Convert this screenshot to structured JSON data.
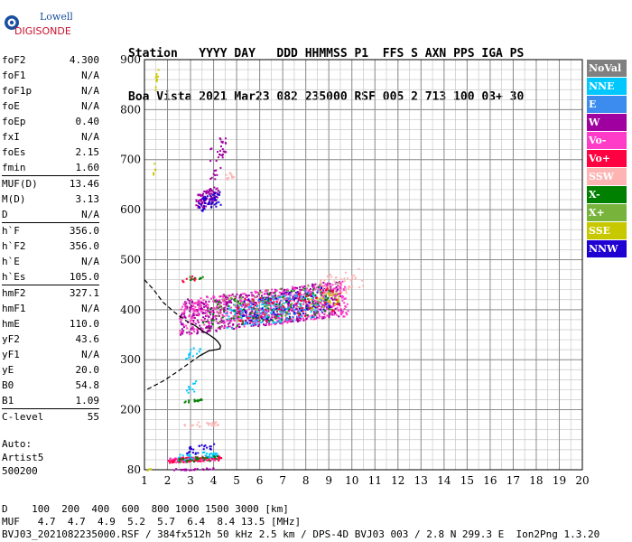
{
  "logo": {
    "line1": "Lowell",
    "line2": "DIGISONDE"
  },
  "header": {
    "labels": [
      "Station",
      "YYYY DAY",
      "DDD HHMMSS P1",
      "FFS S AXN PPS IGA PS"
    ],
    "values": [
      "Boa Vista",
      "2021 Mar23",
      "082 235000 RSF",
      "005 2 713 100 03+ 30"
    ]
  },
  "params": [
    [
      {
        "name": "foF2",
        "value": "4.300"
      },
      {
        "name": "foF1",
        "value": "N/A"
      },
      {
        "name": "foF1p",
        "value": "N/A"
      },
      {
        "name": "foE",
        "value": "N/A"
      },
      {
        "name": "foEp",
        "value": "0.40"
      },
      {
        "name": "fxI",
        "value": "N/A"
      },
      {
        "name": "foEs",
        "value": "2.15"
      },
      {
        "name": "fmin",
        "value": "1.60"
      }
    ],
    [
      {
        "name": "MUF(D)",
        "value": "13.46"
      },
      {
        "name": "M(D)",
        "value": "3.13"
      },
      {
        "name": "D",
        "value": "N/A"
      }
    ],
    [
      {
        "name": "h`F",
        "value": "356.0"
      },
      {
        "name": "h`F2",
        "value": "356.0"
      },
      {
        "name": "h`E",
        "value": "N/A"
      },
      {
        "name": "h`Es",
        "value": "105.0"
      }
    ],
    [
      {
        "name": "hmF2",
        "value": "327.1"
      },
      {
        "name": "hmF1",
        "value": "N/A"
      },
      {
        "name": "hmE",
        "value": "110.0"
      },
      {
        "name": "yF2",
        "value": "43.6"
      },
      {
        "name": "yF1",
        "value": "N/A"
      },
      {
        "name": "yE",
        "value": "20.0"
      },
      {
        "name": "B0",
        "value": "54.8"
      },
      {
        "name": "B1",
        "value": "1.09"
      }
    ],
    [
      {
        "name": "C-level",
        "value": "55"
      }
    ]
  ],
  "auto": {
    "line1": "Auto:",
    "line2": "Artist5",
    "line3": "500200"
  },
  "footer": {
    "d_row": "D    100  200  400  600  800 1000 1500 3000 [km]",
    "muf_row": "MUF   4.7  4.7  4.9  5.2  5.7  6.4  8.4 13.5 [MHz]",
    "file_line": "BVJ03_2021082235000.RSF / 384fx512h 50 kHz 2.5 km / DPS-4D BVJ03 003 / 2.8 N 299.3 E  Ion2Png 1.3.20"
  },
  "legend": [
    {
      "label": "NoVal",
      "color": "#808080"
    },
    {
      "label": "NNE",
      "color": "#00c8ff"
    },
    {
      "label": "E",
      "color": "#3c8cf0"
    },
    {
      "label": "W",
      "color": "#a000a0"
    },
    {
      "label": "Vo-",
      "color": "#ff3cc8"
    },
    {
      "label": "Vo+",
      "color": "#ff0040"
    },
    {
      "label": "SSW",
      "color": "#ffb4b4"
    },
    {
      "label": "X-",
      "color": "#008000"
    },
    {
      "label": "X+",
      "color": "#78b43c"
    },
    {
      "label": "SSE",
      "color": "#c8c800"
    },
    {
      "label": "NNW",
      "color": "#1e00d2"
    }
  ],
  "chart_data": {
    "type": "scatter",
    "xlim": [
      1,
      20
    ],
    "ylim": [
      80,
      900
    ],
    "x_ticks": [
      1,
      2,
      3,
      4,
      5,
      6,
      7,
      8,
      9,
      10,
      11,
      12,
      13,
      14,
      15,
      16,
      17,
      18,
      19,
      20
    ],
    "y_ticks": [
      80,
      200,
      300,
      400,
      500,
      600,
      700,
      800,
      900
    ],
    "grid": true,
    "legend_placement": "right",
    "clusters": [
      {
        "series": "W",
        "color": "#a000a0",
        "f": [
          3.2,
          4.2
        ],
        "h": [
          600,
          650
        ],
        "n": 90
      },
      {
        "series": "NNW",
        "color": "#1e00d2",
        "f": [
          3.3,
          4.3
        ],
        "h": [
          595,
          640
        ],
        "n": 50
      },
      {
        "series": "W",
        "color": "#a000a0",
        "f": [
          3.8,
          4.5
        ],
        "h": [
          650,
          760
        ],
        "n": 35
      },
      {
        "series": "SSW",
        "color": "#ffb4b4",
        "f": [
          4.5,
          4.9
        ],
        "h": [
          660,
          680
        ],
        "n": 12
      },
      {
        "series": "SSE",
        "color": "#c8c800",
        "f": [
          1.45,
          1.6
        ],
        "h": [
          835,
          900
        ],
        "n": 10
      },
      {
        "series": "SSE",
        "color": "#c8c800",
        "f": [
          1.35,
          1.45
        ],
        "h": [
          670,
          700
        ],
        "n": 5
      },
      {
        "series": "W",
        "color": "#a000a0",
        "f": [
          2.5,
          9.5
        ],
        "h": [
          350,
          460
        ],
        "n": 700
      },
      {
        "series": "Vo-",
        "color": "#ff3cc8",
        "f": [
          2.5,
          9.8
        ],
        "h": [
          350,
          460
        ],
        "n": 500
      },
      {
        "series": "NNE",
        "color": "#00c8ff",
        "f": [
          4.5,
          8.5
        ],
        "h": [
          360,
          440
        ],
        "n": 120
      },
      {
        "series": "E",
        "color": "#3c8cf0",
        "f": [
          5.5,
          9.0
        ],
        "h": [
          370,
          450
        ],
        "n": 100
      },
      {
        "series": "NNW",
        "color": "#1e00d2",
        "f": [
          5.0,
          9.0
        ],
        "h": [
          370,
          450
        ],
        "n": 80
      },
      {
        "series": "X-",
        "color": "#008000",
        "f": [
          3.5,
          9.0
        ],
        "h": [
          360,
          450
        ],
        "n": 100
      },
      {
        "series": "X+",
        "color": "#78b43c",
        "f": [
          4.0,
          9.5
        ],
        "h": [
          370,
          460
        ],
        "n": 80
      },
      {
        "series": "SSW",
        "color": "#ffb4b4",
        "f": [
          8.5,
          10.5
        ],
        "h": [
          420,
          490
        ],
        "n": 60
      },
      {
        "series": "SSE",
        "color": "#c8c800",
        "f": [
          8.2,
          9.4
        ],
        "h": [
          400,
          440
        ],
        "n": 25
      },
      {
        "series": "Vo+",
        "color": "#ff0040",
        "f": [
          5.0,
          9.5
        ],
        "h": [
          370,
          450
        ],
        "n": 70
      },
      {
        "series": "X-",
        "color": "#008000",
        "f": [
          2.8,
          3.5
        ],
        "h": [
          460,
          470
        ],
        "n": 12
      },
      {
        "series": "Vo+",
        "color": "#ff0040",
        "f": [
          2.6,
          3.2
        ],
        "h": [
          455,
          470
        ],
        "n": 8
      },
      {
        "series": "NNE",
        "color": "#00c8ff",
        "f": [
          2.7,
          3.5
        ],
        "h": [
          300,
          330
        ],
        "n": 15
      },
      {
        "series": "X-",
        "color": "#008000",
        "f": [
          2.7,
          3.5
        ],
        "h": [
          215,
          225
        ],
        "n": 15
      },
      {
        "series": "NNE",
        "color": "#00c8ff",
        "f": [
          2.8,
          3.2
        ],
        "h": [
          225,
          260
        ],
        "n": 10
      },
      {
        "series": "SSW",
        "color": "#ffb4b4",
        "f": [
          2.7,
          4.2
        ],
        "h": [
          165,
          180
        ],
        "n": 25
      },
      {
        "series": "Vo-",
        "color": "#ff3cc8",
        "f": [
          2.0,
          4.3
        ],
        "h": [
          95,
          110
        ],
        "n": 100
      },
      {
        "series": "Vo+",
        "color": "#ff0040",
        "f": [
          2.0,
          4.3
        ],
        "h": [
          95,
          110
        ],
        "n": 70
      },
      {
        "series": "NNE",
        "color": "#00c8ff",
        "f": [
          2.4,
          4.2
        ],
        "h": [
          100,
          120
        ],
        "n": 40
      },
      {
        "series": "X-",
        "color": "#008000",
        "f": [
          2.4,
          4.2
        ],
        "h": [
          95,
          110
        ],
        "n": 30
      },
      {
        "series": "NNW",
        "color": "#1e00d2",
        "f": [
          2.8,
          4.0
        ],
        "h": [
          110,
          135
        ],
        "n": 25
      },
      {
        "series": "W",
        "color": "#a000a0",
        "f": [
          2.2,
          4.0
        ],
        "h": [
          80,
          85
        ],
        "n": 25
      },
      {
        "series": "SSE",
        "color": "#c8c800",
        "f": [
          1.1,
          1.3
        ],
        "h": [
          80,
          85
        ],
        "n": 3
      }
    ],
    "profile": [
      [
        1,
        460
      ],
      [
        1.4,
        440
      ],
      [
        1.8,
        415
      ],
      [
        2.3,
        395
      ],
      [
        2.8,
        378
      ],
      [
        3.2,
        368
      ],
      [
        3.5,
        358
      ],
      [
        3.8,
        350
      ],
      [
        4.05,
        342
      ],
      [
        4.2,
        335
      ],
      [
        4.3,
        328
      ],
      [
        4.28,
        322
      ],
      [
        4.1,
        320
      ],
      [
        3.8,
        318
      ],
      [
        3.4,
        308
      ],
      [
        3.0,
        295
      ],
      [
        2.4,
        275
      ],
      [
        1.8,
        257
      ],
      [
        1.3,
        245
      ],
      [
        1,
        238
      ]
    ]
  }
}
